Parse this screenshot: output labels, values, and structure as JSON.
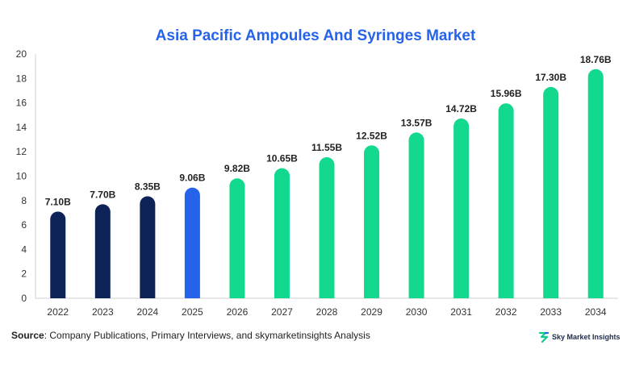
{
  "chart_data": {
    "type": "bar",
    "title": "Asia Pacific Ampoules And Syringes Market",
    "categories": [
      "2022",
      "2023",
      "2024",
      "2025",
      "2026",
      "2027",
      "2028",
      "2029",
      "2030",
      "2031",
      "2032",
      "2033",
      "2034"
    ],
    "values": [
      7.1,
      7.7,
      8.35,
      9.06,
      9.82,
      10.65,
      11.55,
      12.52,
      13.57,
      14.72,
      15.96,
      17.3,
      18.76
    ],
    "data_labels": [
      "7.10B",
      "7.70B",
      "8.35B",
      "9.06B",
      "9.82B",
      "10.65B",
      "11.55B",
      "12.52B",
      "13.57B",
      "14.72B",
      "15.96B",
      "17.30B",
      "18.76B"
    ],
    "ylim": [
      0,
      20
    ],
    "yticks": [
      "0",
      "2",
      "4",
      "6",
      "8",
      "10",
      "12",
      "14",
      "16",
      "18",
      "20"
    ],
    "xlabel": "",
    "ylabel": "",
    "grid": false,
    "colors": {
      "historical": "#0d2257",
      "current": "#2563eb",
      "forecast": "#12d98e",
      "title": "#2563eb"
    },
    "bar_color_groups": [
      "historical",
      "historical",
      "historical",
      "current",
      "forecast",
      "forecast",
      "forecast",
      "forecast",
      "forecast",
      "forecast",
      "forecast",
      "forecast",
      "forecast"
    ]
  },
  "footer": {
    "source_label": "Source",
    "source_text": ": Company Publications, Primary Interviews, and skymarketinsights Analysis",
    "brand_name": "Sky Market Insights",
    "brand_icon": "sky-market-insights-logo-icon"
  }
}
